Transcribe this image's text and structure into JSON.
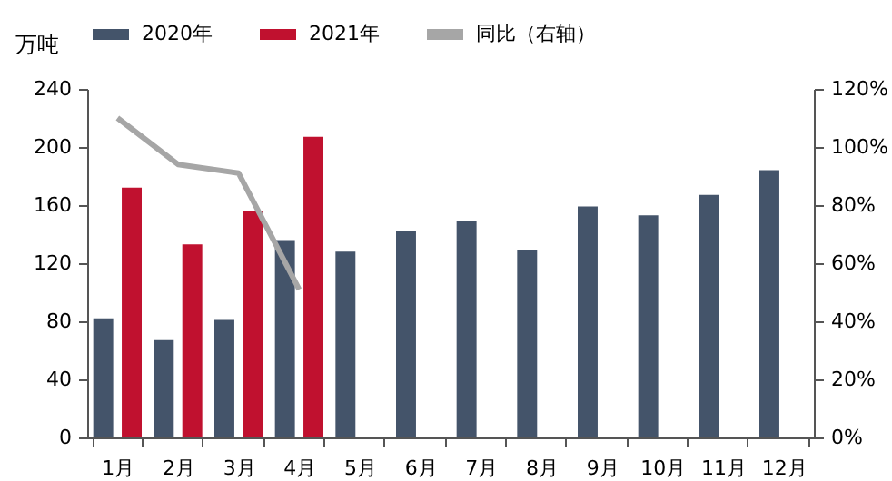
{
  "chart_data": {
    "type": "bar",
    "ylabel": "万吨",
    "categories": [
      "1月",
      "2月",
      "3月",
      "4月",
      "5月",
      "6月",
      "7月",
      "8月",
      "9月",
      "10月",
      "11月",
      "12月"
    ],
    "series": [
      {
        "name": "2020年",
        "color": "#44546a",
        "values": [
          82,
          67,
          81,
          136,
          128,
          142,
          149,
          129,
          159,
          153,
          167,
          184
        ]
      },
      {
        "name": "2021年",
        "color": "#c0112f",
        "values": [
          172,
          133,
          156,
          207,
          null,
          null,
          null,
          null,
          null,
          null,
          null,
          null
        ]
      },
      {
        "name": "同比（右轴）",
        "type": "line",
        "axis": "y2",
        "color": "#a6a6a6",
        "values": [
          110,
          94,
          91,
          51,
          null,
          null,
          null,
          null,
          null,
          null,
          null,
          null
        ]
      }
    ],
    "ylim": [
      0,
      240
    ],
    "yticks": [
      0,
      40,
      80,
      120,
      160,
      200,
      240
    ],
    "y2lim": [
      0,
      120
    ],
    "y2ticks": [
      {
        "value": 0,
        "label": "0%"
      },
      {
        "value": 20,
        "label": "20%"
      },
      {
        "value": 40,
        "label": "40%"
      },
      {
        "value": 60,
        "label": "60%"
      },
      {
        "value": 80,
        "label": "80%"
      },
      {
        "value": 100,
        "label": "100%"
      },
      {
        "value": 120,
        "label": "120%"
      }
    ],
    "legend": "top",
    "grid": false
  }
}
